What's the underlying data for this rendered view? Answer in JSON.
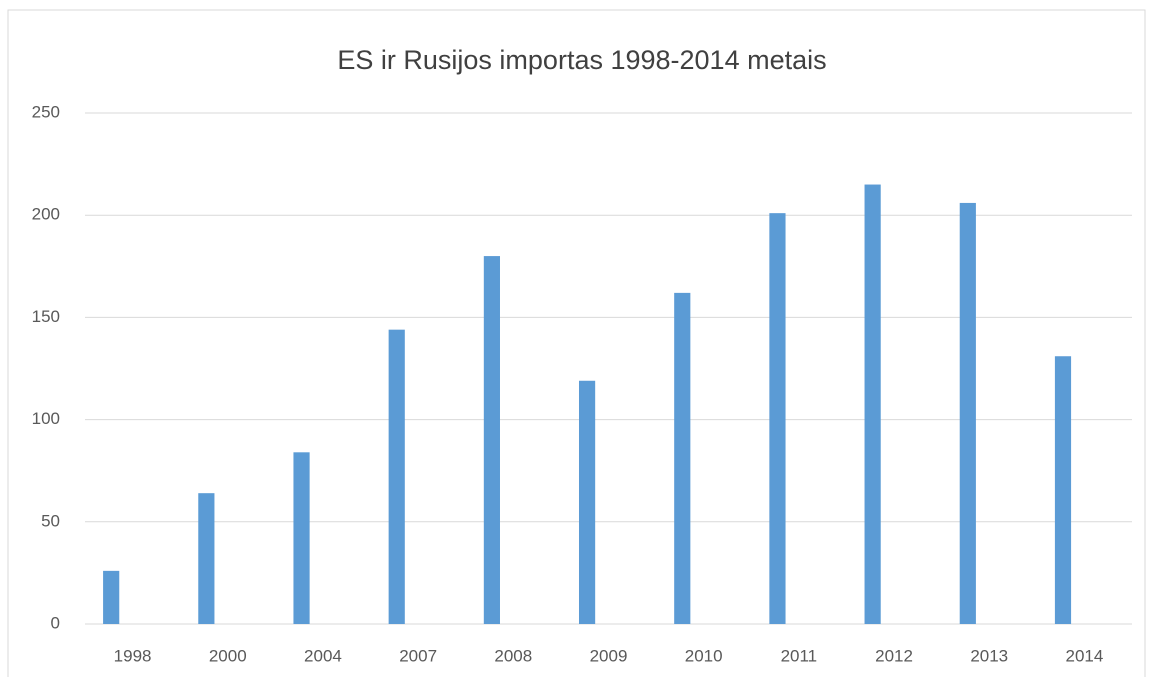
{
  "chart_data": {
    "type": "bar",
    "title": "ES ir Rusijos importas 1998-2014 metais",
    "categories": [
      "1998",
      "2000",
      "2004",
      "2007",
      "2008",
      "2009",
      "2010",
      "2011",
      "2012",
      "2013",
      "2014"
    ],
    "values": [
      26,
      64,
      84,
      144,
      180,
      119,
      162,
      201,
      215,
      206,
      131
    ],
    "color": "#5b9bd5",
    "ylim": [
      0,
      250
    ],
    "yticks": [
      0,
      50,
      100,
      150,
      200,
      250
    ],
    "grid": true
  }
}
